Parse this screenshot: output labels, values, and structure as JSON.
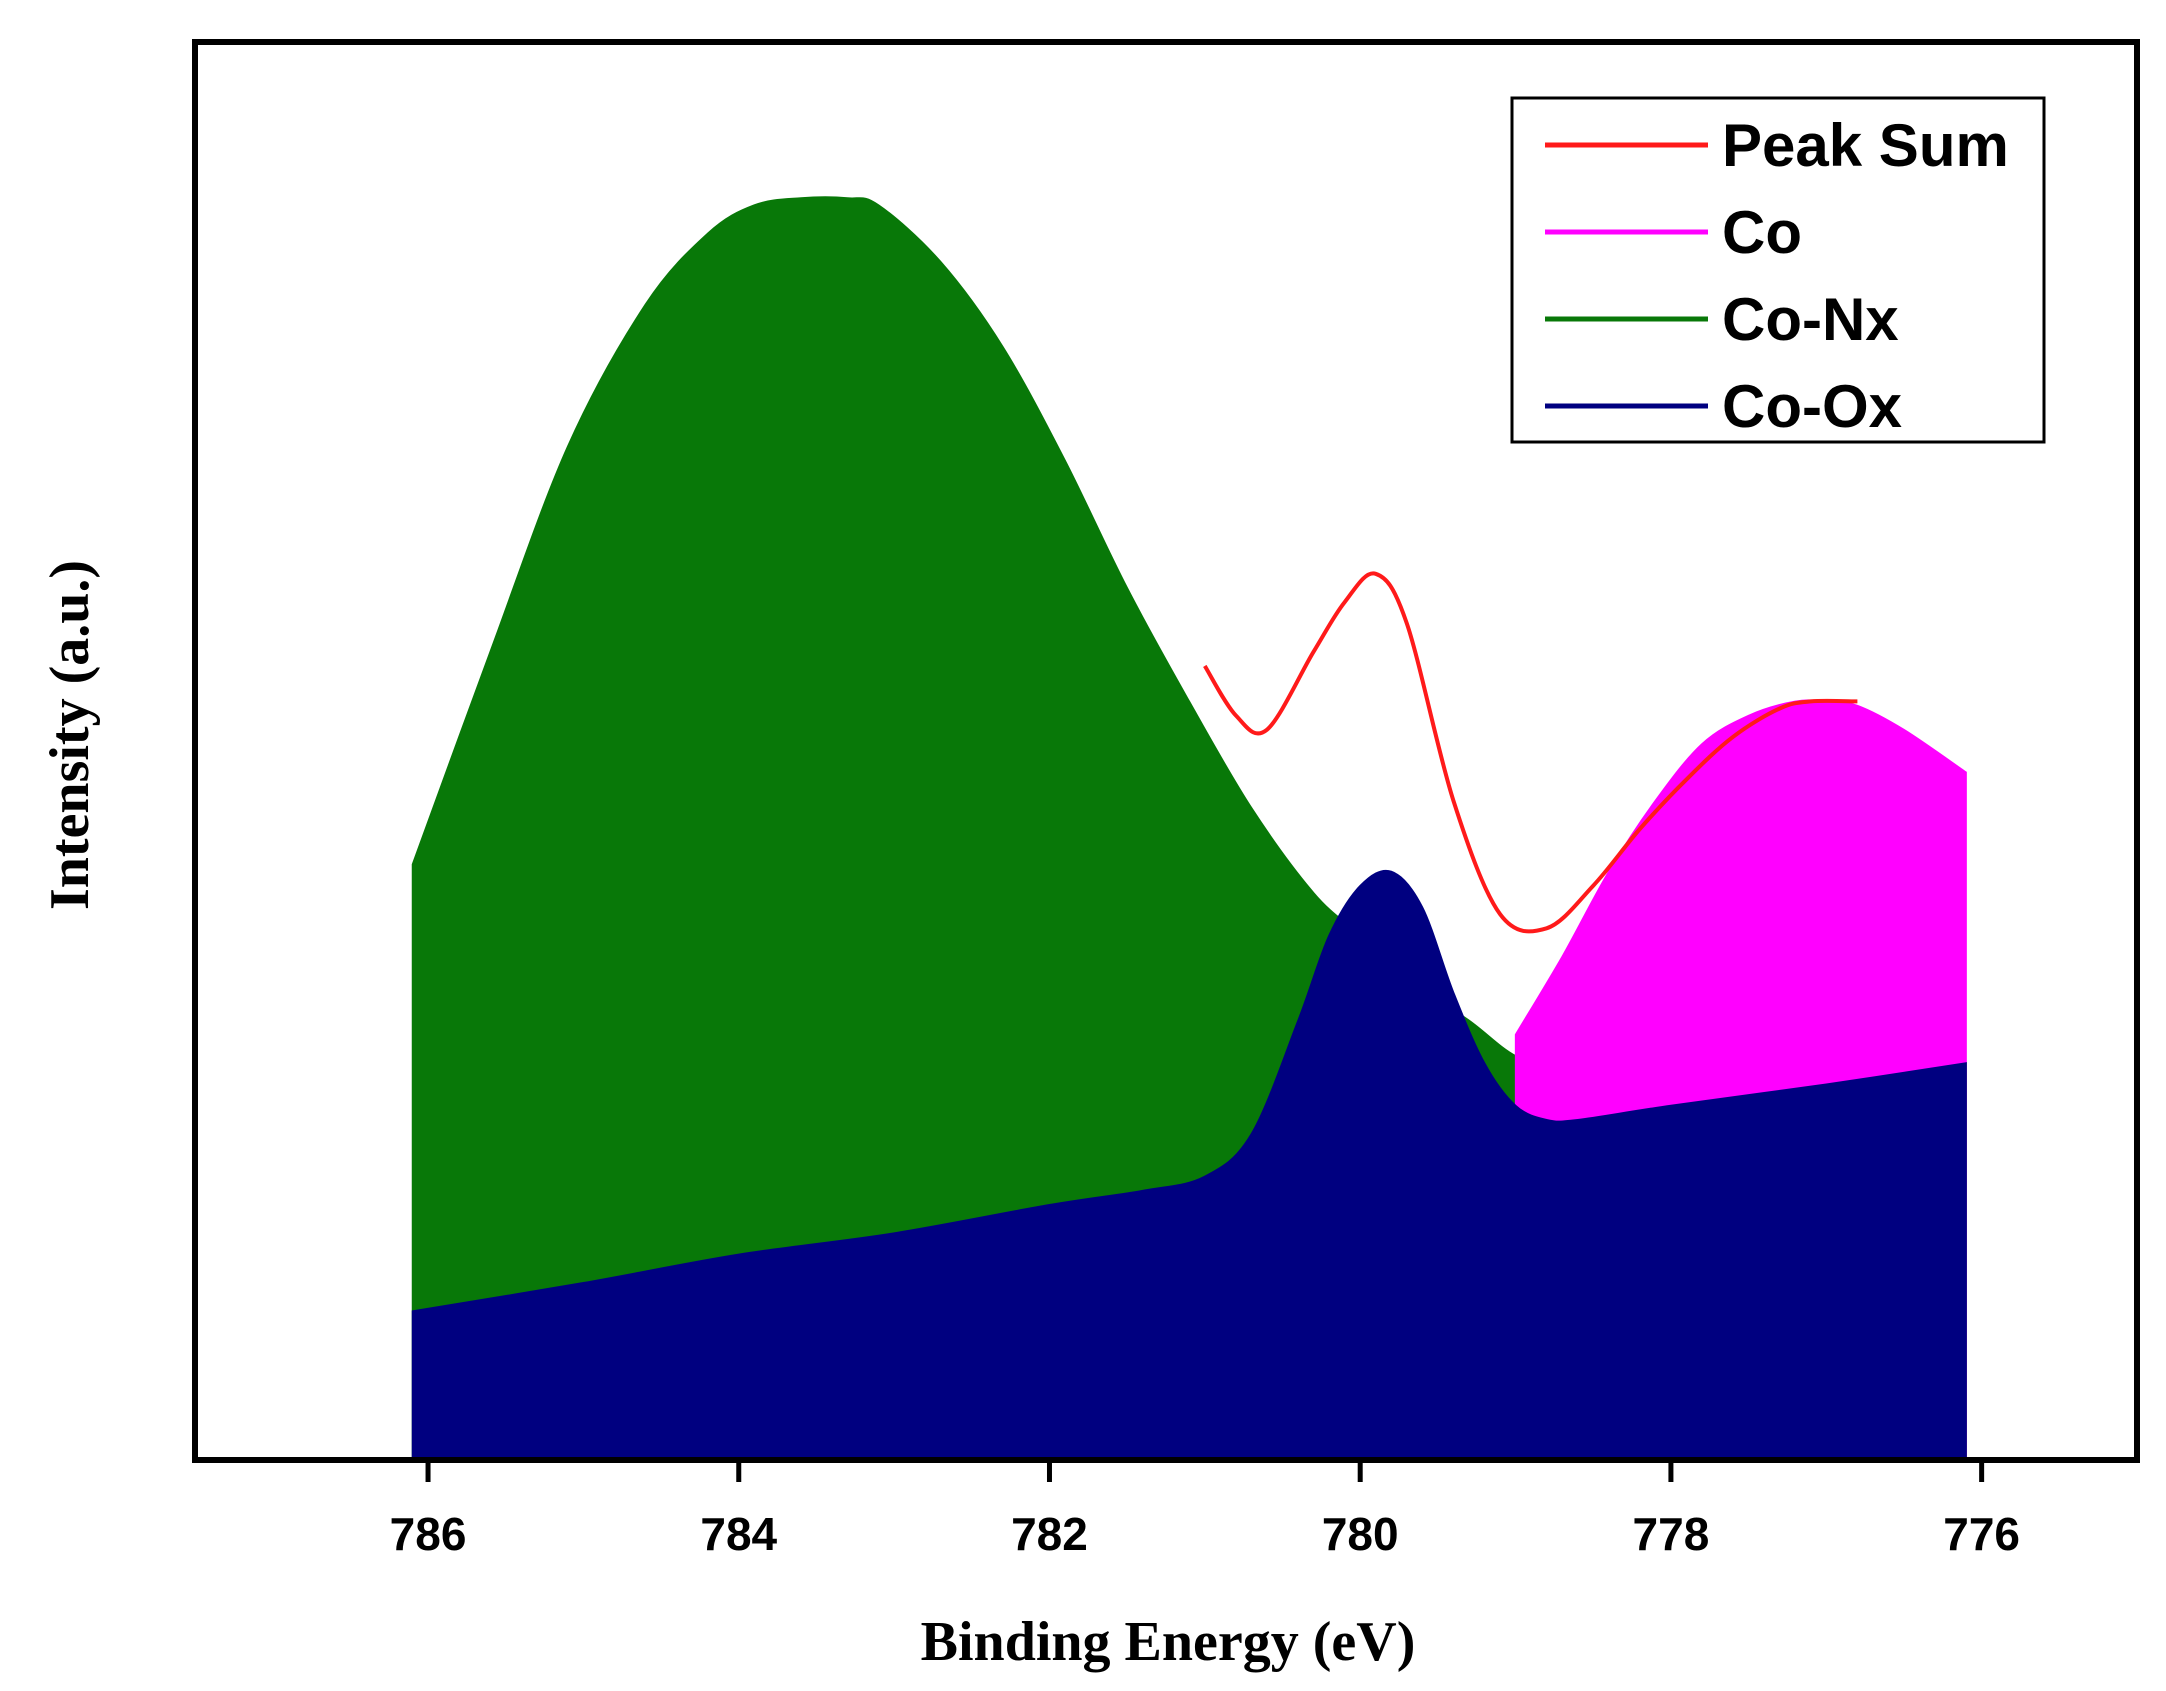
{
  "chart_data": {
    "type": "area",
    "title": "",
    "xlabel": "Binding Energy (eV)",
    "ylabel": "Intensity (a.u.)",
    "xlim": [
      787.5,
      775
    ],
    "ylim": [
      0,
      100
    ],
    "x_reversed": true,
    "xticks": [
      786,
      784,
      782,
      780,
      778,
      776
    ],
    "xtick_labels": [
      "786",
      "784",
      "782",
      "780",
      "778",
      "776"
    ],
    "legend_position": "top-right",
    "grid": false,
    "y_tick_labels_shown": false,
    "series": [
      {
        "name": "Peak Sum",
        "color": "#ff1a1a",
        "style": "line",
        "x": [
          781.0,
          780.8,
          780.6,
          780.3,
          780.1,
          779.9,
          779.7,
          779.4,
          779.1,
          778.8,
          778.5,
          778.2,
          777.9,
          777.6,
          777.3,
          777.1,
          776.8
        ],
        "y": [
          56,
          52.5,
          51.5,
          57,
          60.5,
          62.5,
          59,
          46.5,
          38.5,
          37.5,
          40.5,
          44.5,
          48,
          51,
          53,
          53.5,
          53.5
        ]
      },
      {
        "name": "Co",
        "color": "#ff00ff",
        "style": "filled",
        "x": [
          779.0,
          778.7,
          778.4,
          778.1,
          777.8,
          777.5,
          777.2,
          777.0,
          776.8,
          776.5,
          776.1
        ],
        "y": [
          30,
          35.5,
          41.5,
          46.5,
          50.5,
          52.5,
          53.5,
          53.5,
          53.2,
          51.5,
          48.5
        ]
      },
      {
        "name": "Co-Nx",
        "color": "#087808",
        "style": "filled",
        "x": [
          786.1,
          785.6,
          785.1,
          784.6,
          784.2,
          783.9,
          783.6,
          783.3,
          783.1,
          782.7,
          782.3,
          781.9,
          781.5,
          781.1,
          780.7,
          780.3,
          780.0,
          779.7,
          779.3,
          779.0,
          778.7,
          778.4,
          778.0,
          777.5,
          777.0,
          776.5,
          776.1
        ],
        "y": [
          42,
          57,
          71.5,
          81.5,
          86.5,
          88.5,
          89,
          89,
          88.5,
          84.5,
          78.5,
          70.5,
          61.5,
          53.5,
          46,
          40,
          37,
          34,
          31,
          28.5,
          27.5,
          27,
          26.5,
          26.5,
          27,
          27.5,
          28
        ]
      },
      {
        "name": "Co-Ox",
        "color": "#000080",
        "style": "filled",
        "x": [
          786.1,
          785.0,
          784.0,
          783.0,
          782.0,
          781.4,
          781.0,
          780.7,
          780.4,
          780.2,
          780.0,
          779.8,
          779.6,
          779.4,
          779.2,
          779.0,
          778.8,
          778.6,
          778.0,
          777.0,
          776.1
        ],
        "y": [
          10.5,
          12.5,
          14.5,
          16,
          18,
          19,
          20,
          23,
          31,
          37,
          40.5,
          41.5,
          39,
          33,
          28,
          25,
          24,
          24,
          25,
          26.5,
          28
        ]
      }
    ]
  }
}
